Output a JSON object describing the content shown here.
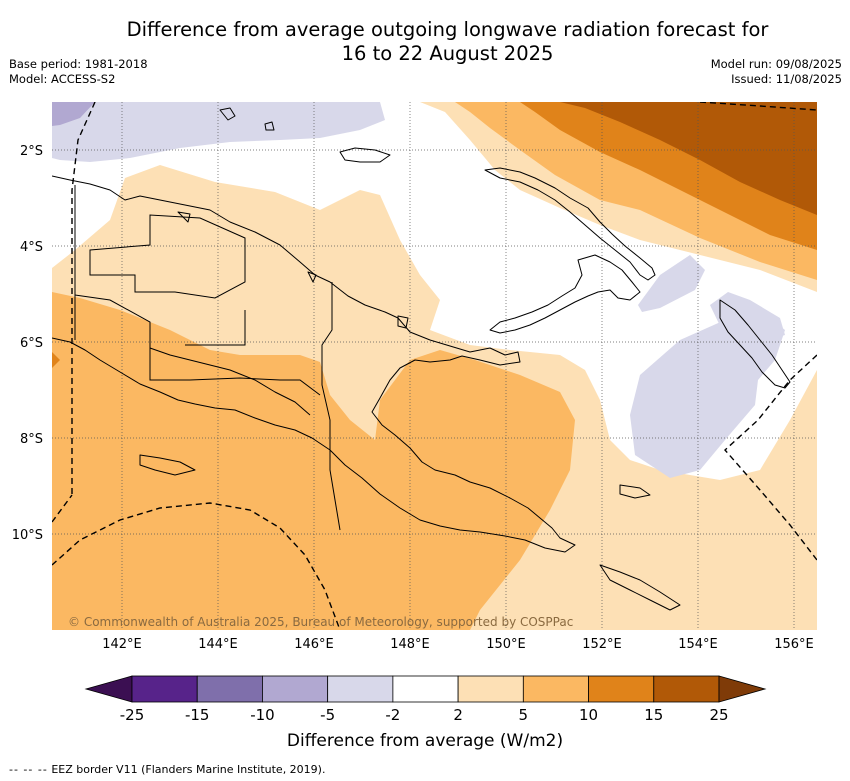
{
  "title_line1": "Difference from average outgoing longwave radiation forecast for",
  "title_line2": "16 to 22 August 2025",
  "base_period": "Base period: 1981-2018",
  "model": "Model: ACCESS-S2",
  "model_run": "Model run: 09/08/2025",
  "issued": "Issued: 11/08/2025",
  "copyright": "© Commonwealth of Australia 2025, Bureau of Meteorology, supported by COSPPac",
  "lat_ticks": [
    "2°S",
    "4°S",
    "6°S",
    "8°S",
    "10°S"
  ],
  "lon_ticks": [
    "142°E",
    "144°E",
    "146°E",
    "148°E",
    "150°E",
    "152°E",
    "154°E",
    "156°E"
  ],
  "colorbar": {
    "title": "Difference from average (W/m2)",
    "labels": [
      "-25",
      "-15",
      "-10",
      "-5",
      "-2",
      "2",
      "5",
      "10",
      "15",
      "25"
    ],
    "colors": [
      "#3b0f52",
      "#57238a",
      "#7f6fab",
      "#b1a8d1",
      "#d8d8ea",
      "#ffffff",
      "#fde0b5",
      "#fbb862",
      "#e0831a",
      "#b15907",
      "#7f3b08"
    ]
  },
  "footer_legend_symbol": "--  --  --",
  "footer_legend_text": "EEZ border V11 (Flanders Marine Institute, 2019)."
}
